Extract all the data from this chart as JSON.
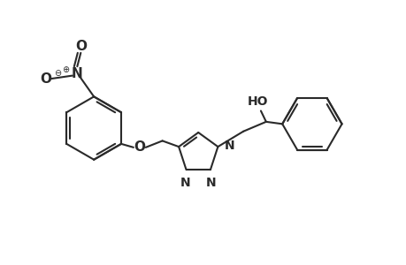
{
  "bg_color": "#ffffff",
  "line_color": "#2a2a2a",
  "line_width": 1.5,
  "figsize": [
    4.6,
    3.0
  ],
  "dpi": 100,
  "xlim": [
    0,
    9.2
  ],
  "ylim": [
    0,
    6.0
  ]
}
